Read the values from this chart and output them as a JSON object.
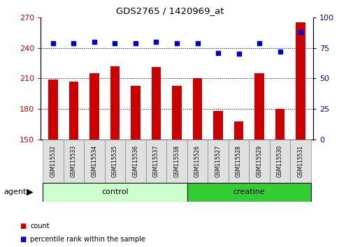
{
  "title": "GDS2765 / 1420969_at",
  "categories": [
    "GSM115532",
    "GSM115533",
    "GSM115534",
    "GSM115535",
    "GSM115536",
    "GSM115537",
    "GSM115538",
    "GSM115526",
    "GSM115527",
    "GSM115528",
    "GSM115529",
    "GSM115530",
    "GSM115531"
  ],
  "bar_values": [
    209,
    207,
    215,
    222,
    203,
    221,
    203,
    210,
    178,
    168,
    215,
    180,
    265
  ],
  "percentile_values": [
    79,
    79,
    80,
    79,
    79,
    80,
    79,
    79,
    71,
    70,
    79,
    72,
    88
  ],
  "bar_color": "#cc0000",
  "dot_color": "#0000cc",
  "ylim_left": [
    150,
    270
  ],
  "ylim_right": [
    0,
    100
  ],
  "yticks_left": [
    150,
    180,
    210,
    240,
    270
  ],
  "yticks_right": [
    0,
    25,
    50,
    75,
    100
  ],
  "control_count": 7,
  "creatine_count": 6,
  "control_color": "#ccffcc",
  "creatine_color": "#33cc33",
  "agent_label": "agent",
  "legend_count": "count",
  "legend_percentile": "percentile rank within the sample"
}
